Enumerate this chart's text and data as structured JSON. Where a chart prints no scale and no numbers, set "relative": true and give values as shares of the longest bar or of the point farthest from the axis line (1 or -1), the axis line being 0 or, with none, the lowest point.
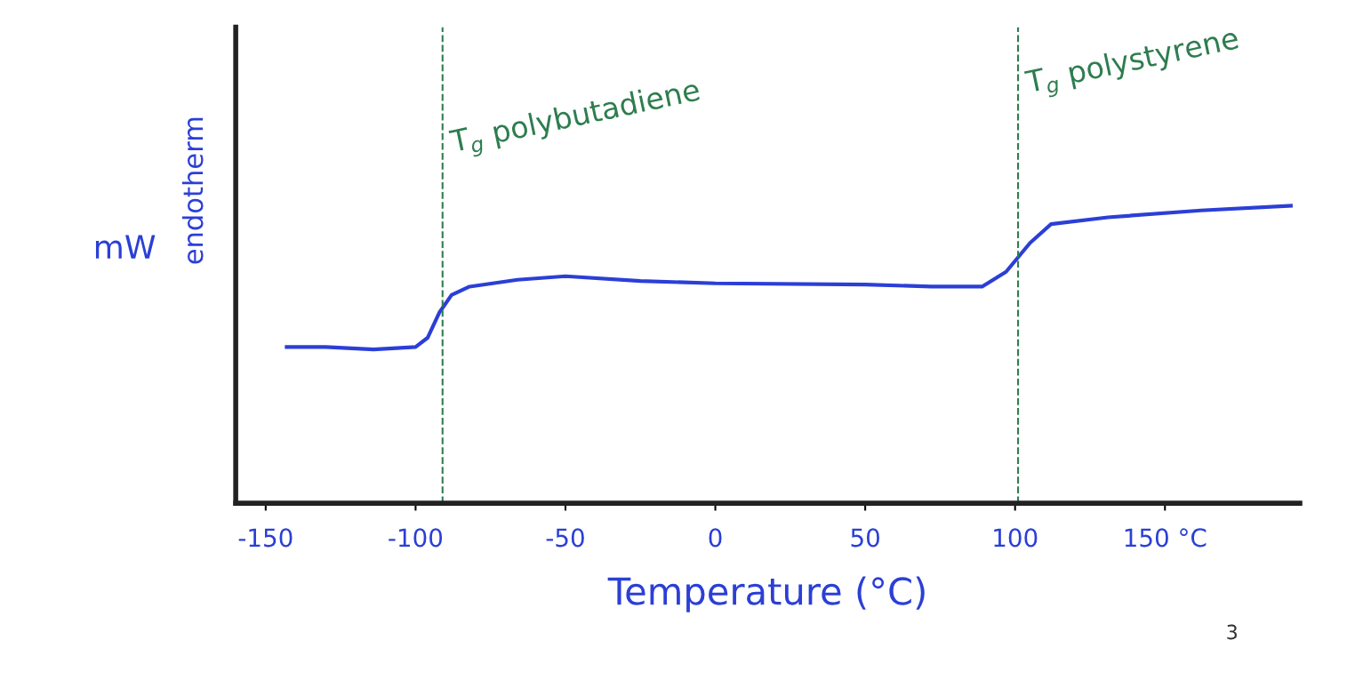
{
  "chart_data": {
    "type": "line",
    "relative": true,
    "xlabel": "Temperature (°C)",
    "ylabel": "mW",
    "x": [
      -143,
      -130,
      -114,
      -100,
      -96,
      -92,
      -88,
      -82,
      -66,
      -50,
      -25,
      0,
      50,
      72,
      89,
      97,
      105,
      112,
      131,
      162,
      192
    ],
    "series": [
      {
        "color": "#2b3fd6",
        "values": [
          0.525,
          0.525,
          0.517,
          0.525,
          0.556,
          0.642,
          0.7,
          0.728,
          0.751,
          0.763,
          0.747,
          0.739,
          0.735,
          0.728,
          0.728,
          0.778,
          0.875,
          0.938,
          0.961,
          0.984,
          1.0
        ]
      }
    ],
    "xlim": [
      -160,
      195
    ],
    "xticks": [
      -150,
      -100,
      -50,
      0,
      50,
      100,
      {
        "value": 150,
        "label": "150 °C"
      }
    ],
    "ref_lines": [
      {
        "axis": "x",
        "value": -91,
        "label": "T$_{g}$ polybutadiene",
        "color": "#2e7d4f",
        "line_style": "dashed"
      },
      {
        "axis": "x",
        "value": 101,
        "label": "T$_{g}$ polystyrene",
        "color": "#2e7d4f",
        "line_style": "dashed"
      }
    ],
    "annotations": [
      "endotherm",
      "3"
    ],
    "grid": false
  }
}
